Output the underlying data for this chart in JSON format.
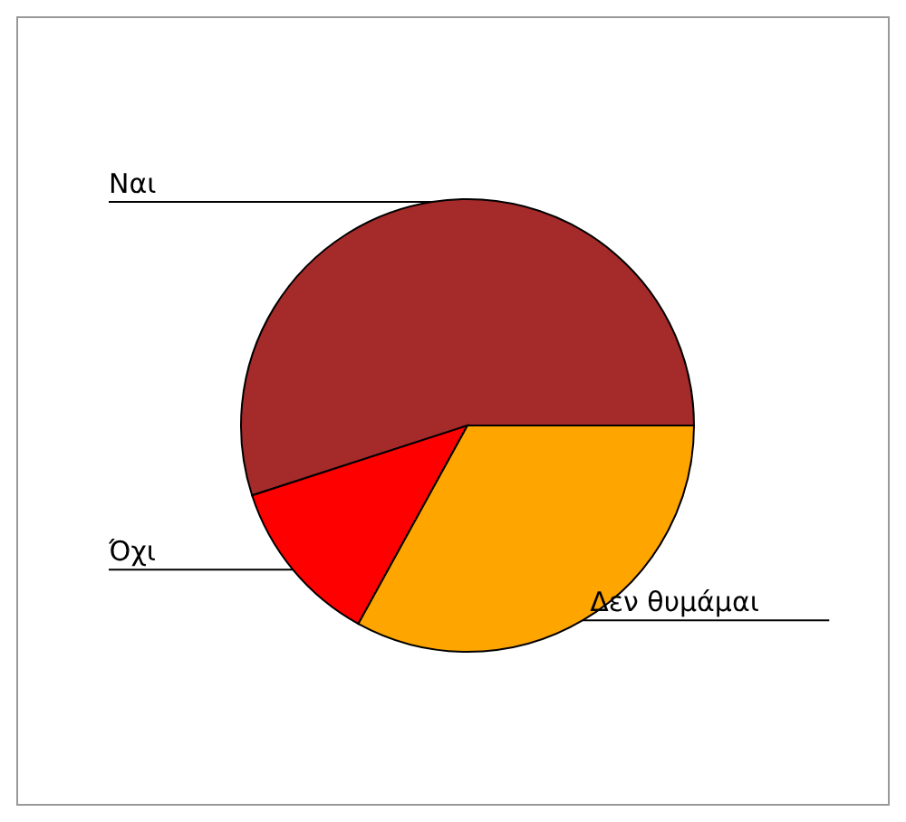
{
  "chart_data": {
    "type": "pie",
    "categories": [
      "Ναι",
      "Όχι",
      "Δεν θυμάμαι"
    ],
    "values": [
      55,
      12,
      33
    ],
    "colors": [
      "#a52a2a",
      "#ff0000",
      "#ffa500"
    ]
  }
}
